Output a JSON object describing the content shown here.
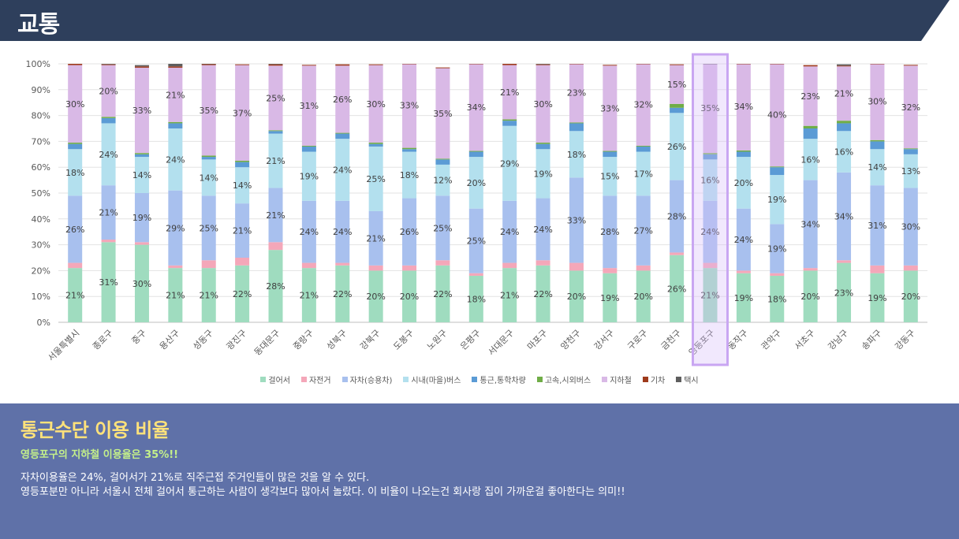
{
  "header": {
    "title": "교통",
    "bg_color": "#2e3f5c"
  },
  "chart_data": {
    "type": "bar",
    "stacked": true,
    "percent": true,
    "ylim": [
      0,
      100
    ],
    "y_ticks": [
      "0%",
      "10%",
      "20%",
      "30%",
      "40%",
      "50%",
      "60%",
      "70%",
      "80%",
      "90%",
      "100%"
    ],
    "grid": true,
    "legend_position": "bottom",
    "highlight_category": "영등포구",
    "categories": [
      "서울특별시",
      "종로구",
      "중구",
      "용산구",
      "성동구",
      "광진구",
      "동대문구",
      "중랑구",
      "성북구",
      "강북구",
      "도봉구",
      "노원구",
      "은평구",
      "서대문구",
      "마포구",
      "양천구",
      "강서구",
      "구로구",
      "금천구",
      "영등포구",
      "동작구",
      "관악구",
      "서초구",
      "강남구",
      "송파구",
      "강동구"
    ],
    "series": [
      {
        "name": "걸어서",
        "color": "#9fdcbf",
        "values": [
          21,
          31,
          30,
          21,
          21,
          22,
          28,
          21,
          22,
          20,
          20,
          22,
          18,
          21,
          22,
          20,
          19,
          20,
          26,
          21,
          19,
          18,
          20,
          23,
          19,
          20
        ]
      },
      {
        "name": "자전거",
        "color": "#f4a7b9",
        "values": [
          2,
          1,
          1,
          1,
          3,
          3,
          3,
          2,
          1,
          2,
          2,
          2,
          1,
          2,
          2,
          3,
          2,
          2,
          1,
          2,
          1,
          1,
          1,
          1,
          3,
          2
        ]
      },
      {
        "name": "자차(승용차)",
        "color": "#a8c0ee",
        "values": [
          26,
          21,
          19,
          29,
          25,
          21,
          21,
          24,
          24,
          21,
          26,
          25,
          25,
          24,
          24,
          33,
          28,
          27,
          28,
          24,
          24,
          19,
          34,
          34,
          31,
          30
        ]
      },
      {
        "name": "시내(마을)버스",
        "color": "#b3e0ee",
        "values": [
          18,
          24,
          14,
          24,
          14,
          14,
          21,
          19,
          24,
          25,
          18,
          12,
          20,
          29,
          19,
          18,
          15,
          17,
          26,
          16,
          20,
          19,
          16,
          16,
          14,
          13
        ]
      },
      {
        "name": "통근,통학차량",
        "color": "#5b9bd5",
        "values": [
          2,
          2,
          1,
          2,
          1,
          2,
          1,
          2,
          2,
          1,
          1,
          2,
          2,
          2,
          2,
          3,
          2,
          2,
          2,
          2,
          2,
          3,
          4,
          3,
          3,
          2
        ]
      },
      {
        "name": "고속,시외버스",
        "color": "#70ad47",
        "values": [
          0.5,
          0.5,
          0.5,
          0.5,
          0.5,
          0.5,
          0.3,
          0.3,
          0.3,
          0.5,
          0.5,
          0.3,
          0.3,
          0.5,
          0.5,
          0.3,
          0.3,
          0.3,
          1.5,
          0.5,
          0.5,
          0.3,
          1,
          1,
          0.5,
          0.3
        ]
      },
      {
        "name": "지하철",
        "color": "#d9b9e6",
        "values": [
          30,
          20,
          33,
          21,
          35,
          37,
          25,
          31,
          26,
          30,
          33,
          35,
          34,
          21,
          30,
          23,
          33,
          32,
          15,
          35,
          34,
          40,
          23,
          21,
          30,
          32
        ]
      },
      {
        "name": "기차",
        "color": "#9e3a1c",
        "values": [
          0.5,
          0.3,
          0.5,
          0.5,
          0.5,
          0.3,
          0.5,
          0.3,
          0.5,
          0.3,
          0.3,
          0.3,
          0.3,
          0.5,
          0.3,
          0.3,
          0.3,
          0.3,
          0.3,
          0.3,
          0.5,
          0.3,
          0.5,
          0.3,
          0.3,
          0.3
        ]
      },
      {
        "name": "택시",
        "color": "#5e5e5e",
        "values": [
          0,
          0.2,
          0.5,
          1,
          0.5,
          0,
          0.2,
          0,
          0,
          0,
          0,
          0,
          0,
          0,
          0.2,
          0,
          0,
          0,
          0,
          0.2,
          0,
          0,
          0,
          0.5,
          0,
          0
        ]
      }
    ],
    "data_labels": {
      "걸어서": [
        "21%",
        "31%",
        "30%",
        "21%",
        "21%",
        "22%",
        "28%",
        "21%",
        "22%",
        "20%",
        "20%",
        "22%",
        "18%",
        "21%",
        "22%",
        "20%",
        "19%",
        "20%",
        "26%",
        "21%",
        "19%",
        "18%",
        "20%",
        "23%",
        "19%",
        "20%"
      ],
      "자차(승용차)": [
        "26%",
        "21%",
        "19%",
        "29%",
        "25%",
        "21%",
        "21%",
        "24%",
        "24%",
        "21%",
        "26%",
        "25%",
        "25%",
        "24%",
        "24%",
        "33%",
        "28%",
        "27%",
        "28%",
        "24%",
        "24%",
        "19%",
        "34%",
        "34%",
        "31%",
        "30%"
      ],
      "시내(마을)버스": [
        "18%",
        "24%",
        "14%",
        "24%",
        "14%",
        "14%",
        "21%",
        "19%",
        "24%",
        "25%",
        "18%",
        "12%",
        "20%",
        "29%",
        "19%",
        "18%",
        "15%",
        "17%",
        "26%",
        "16%",
        "20%",
        "19%",
        "16%",
        "16%",
        "14%",
        "13%"
      ],
      "지하철": [
        "30%",
        "20%",
        "33%",
        "21%",
        "35%",
        "37%",
        "25%",
        "31%",
        "26%",
        "30%",
        "33%",
        "35%",
        "34%",
        "21%",
        "30%",
        "23%",
        "33%",
        "32%",
        "15%",
        "35%",
        "34%",
        "40%",
        "23%",
        "21%",
        "30%",
        "32%"
      ]
    }
  },
  "legend": {
    "items": [
      {
        "label": "걸어서",
        "color": "#9fdcbf"
      },
      {
        "label": "자전거",
        "color": "#f4a7b9"
      },
      {
        "label": "자차(승용차)",
        "color": "#a8c0ee"
      },
      {
        "label": "시내(마을)버스",
        "color": "#b3e0ee"
      },
      {
        "label": "통근,통학차량",
        "color": "#5b9bd5"
      },
      {
        "label": "고속,시외버스",
        "color": "#70ad47"
      },
      {
        "label": "지하철",
        "color": "#d9b9e6"
      },
      {
        "label": "기차",
        "color": "#9e3a1c"
      },
      {
        "label": "택시",
        "color": "#5e5e5e"
      }
    ]
  },
  "summary": {
    "title": "통근수단 이용 비율",
    "subtitle": "영등포구의 지하철 이용율은 35%!!",
    "body_line1": "자차이용율은 24%,  걸어서가 21%로  직주근접 주거인들이 많은 것을 알 수 있다.",
    "body_line2": "영등포분만 아니라 서울시 전체 걸어서 통근하는 사람이 생각보다 많아서 놀랐다. 이 비율이 나오는건 회사랑 집이 가까운걸 좋아한다는 의미!!",
    "bg_color": "#5f71a8",
    "title_color": "#ffe27a",
    "subtitle_color": "#c4f08a"
  }
}
